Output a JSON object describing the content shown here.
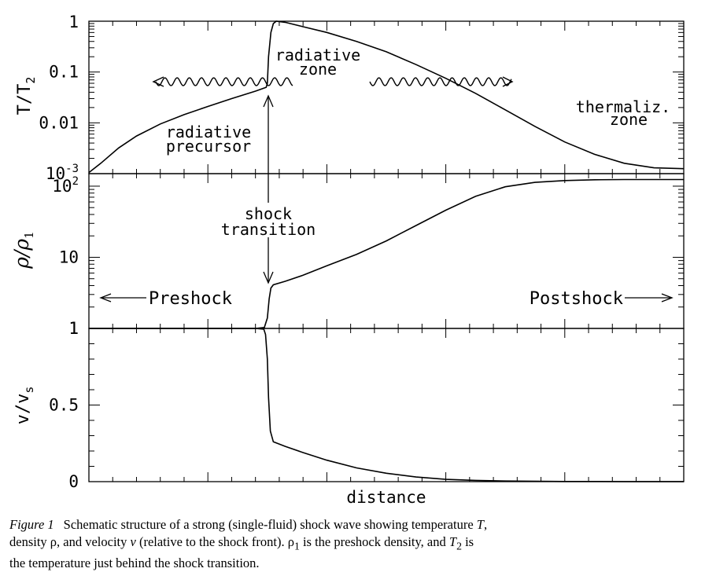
{
  "chart_data": [
    {
      "type": "line",
      "panel": "temperature",
      "ylabel": "T/T2",
      "yscale": "log",
      "ylim": [
        0.001,
        1
      ],
      "yticks": [
        {
          "value": 0.001,
          "label": "10",
          "sup": "-3"
        },
        {
          "value": 0.01,
          "label": "0.01"
        },
        {
          "value": 0.1,
          "label": "0.1"
        },
        {
          "value": 1,
          "label": "1"
        }
      ],
      "xlim": [
        0,
        1
      ],
      "x": [
        0,
        0.02,
        0.05,
        0.08,
        0.12,
        0.16,
        0.2,
        0.24,
        0.28,
        0.298,
        0.3,
        0.302,
        0.306,
        0.31,
        0.315,
        0.33,
        0.36,
        0.4,
        0.45,
        0.5,
        0.55,
        0.6,
        0.65,
        0.7,
        0.75,
        0.8,
        0.85,
        0.9,
        0.95,
        1
      ],
      "y": [
        0.00105,
        0.0016,
        0.0032,
        0.0055,
        0.0095,
        0.0145,
        0.021,
        0.03,
        0.042,
        0.05,
        0.06,
        0.2,
        0.6,
        0.9,
        1.0,
        0.95,
        0.78,
        0.6,
        0.4,
        0.25,
        0.14,
        0.075,
        0.038,
        0.018,
        0.0085,
        0.0042,
        0.0024,
        0.0016,
        0.0013,
        0.00125
      ],
      "annotations": [
        {
          "text": "radiative",
          "text2": "zone"
        },
        {
          "text": "radiative",
          "text2": "precursor"
        },
        {
          "text": "thermaliz.",
          "text2": "zone"
        }
      ]
    },
    {
      "type": "line",
      "panel": "density",
      "ylabel": "ρ/ρ1",
      "yscale": "log",
      "ylim": [
        1,
        150
      ],
      "yticks": [
        {
          "value": 1,
          "label": "1"
        },
        {
          "value": 10,
          "label": "10"
        },
        {
          "value": 100,
          "label": "10",
          "sup": "2"
        }
      ],
      "xlim": [
        0,
        1
      ],
      "x": [
        0,
        0.1,
        0.2,
        0.28,
        0.295,
        0.3,
        0.303,
        0.306,
        0.31,
        0.33,
        0.36,
        0.4,
        0.45,
        0.5,
        0.55,
        0.6,
        0.65,
        0.7,
        0.75,
        0.8,
        0.85,
        0.9,
        0.95,
        1
      ],
      "y": [
        1,
        1,
        1,
        1,
        1.03,
        1.4,
        2.6,
        3.7,
        4.1,
        4.6,
        5.6,
        7.6,
        11,
        17,
        28,
        46,
        72,
        98,
        113,
        120,
        123,
        124,
        124,
        124
      ],
      "annotations": [
        {
          "text": "shock",
          "text2": "transition"
        },
        {
          "text": "Preshock"
        },
        {
          "text": "Postshock"
        }
      ]
    },
    {
      "type": "line",
      "panel": "velocity",
      "ylabel": "v/vs",
      "yscale": "linear",
      "ylim": [
        0,
        1
      ],
      "yticks": [
        {
          "value": 0,
          "label": "0"
        },
        {
          "value": 0.5,
          "label": "0.5"
        },
        {
          "value": 1,
          "label": "1"
        }
      ],
      "xlim": [
        0,
        1
      ],
      "xlabel": "distance",
      "x": [
        0,
        0.1,
        0.2,
        0.28,
        0.294,
        0.297,
        0.3,
        0.302,
        0.305,
        0.31,
        0.33,
        0.36,
        0.4,
        0.45,
        0.5,
        0.55,
        0.6,
        0.65,
        0.7,
        0.8,
        0.9,
        1
      ],
      "y": [
        1,
        1,
        1,
        1,
        0.995,
        0.96,
        0.8,
        0.55,
        0.33,
        0.26,
        0.23,
        0.19,
        0.14,
        0.09,
        0.055,
        0.03,
        0.015,
        0.008,
        0.004,
        0.001,
        0.0005,
        0.0003
      ]
    }
  ],
  "caption": {
    "label": "Figure 1",
    "text_1": "Schematic structure of a strong (single-fluid) shock wave showing temperature ",
    "T": "T",
    "text_2": ",",
    "text_3": "density ρ, and velocity ",
    "v": "v",
    "text_4": " (relative to the shock front). ρ",
    "sub_1": "1",
    "text_5": " is the preshock density, and ",
    "T2": "T",
    "sub_2": "2",
    "text_6": " is",
    "text_7": "the temperature just behind the shock transition."
  }
}
